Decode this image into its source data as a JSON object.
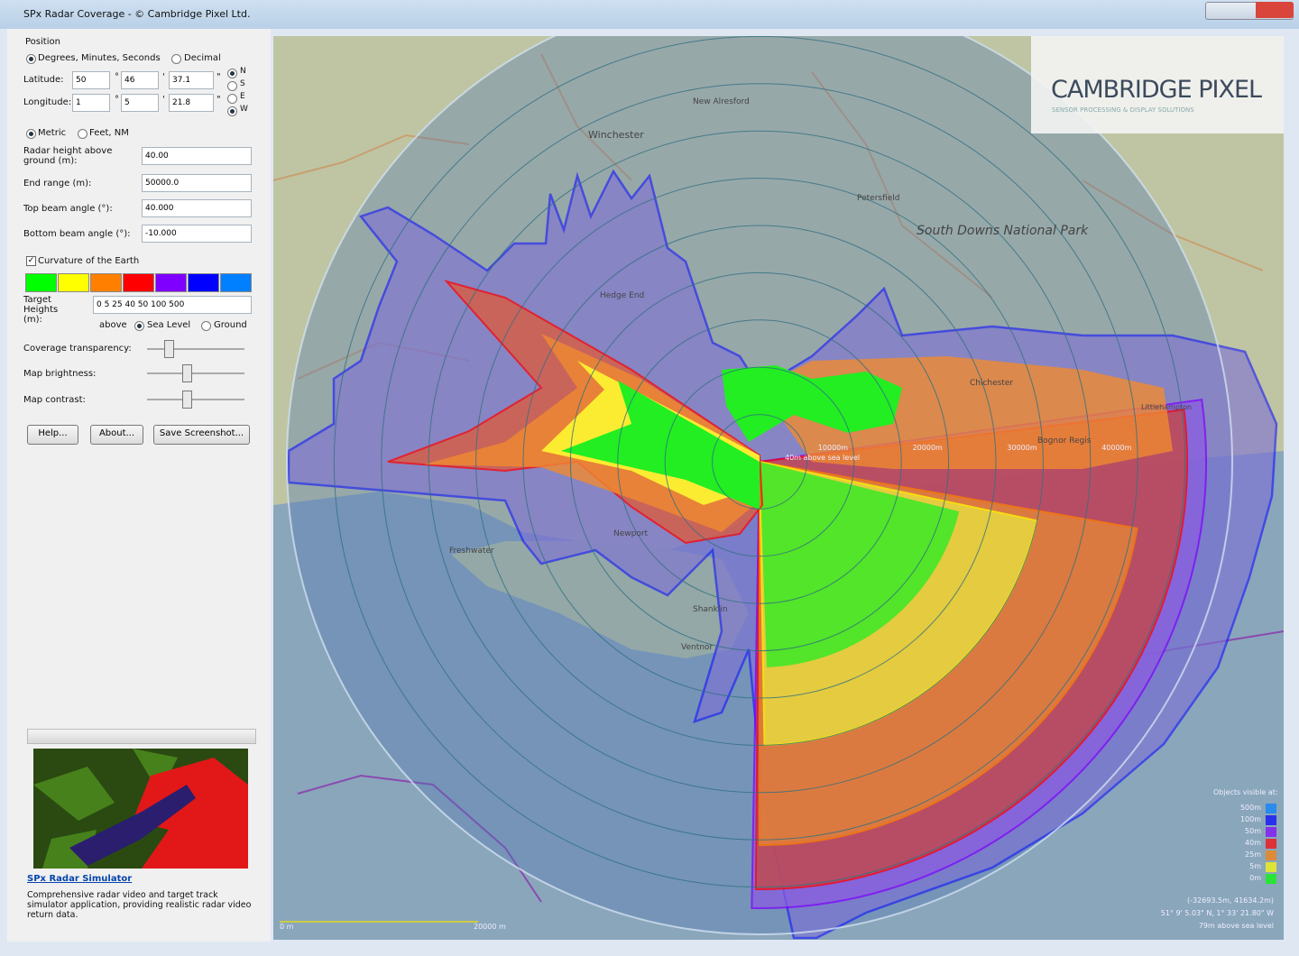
{
  "window": {
    "title": "SPx Radar Coverage - © Cambridge Pixel Ltd."
  },
  "panel": {
    "position": {
      "label": "Position",
      "format_options": [
        "Degrees, Minutes, Seconds",
        "Decimal"
      ],
      "separators": [
        "°",
        "'",
        "\""
      ],
      "latitude": {
        "label": "Latitude:",
        "values": [
          "50",
          "46",
          "37.1"
        ],
        "hemispheres": [
          "N",
          "S"
        ]
      },
      "longitude": {
        "label": "Longitude:",
        "values": [
          "1",
          "5",
          "21.8"
        ],
        "hemispheres": [
          "E",
          "W"
        ]
      }
    },
    "units": [
      "Metric",
      "Feet, NM"
    ],
    "fields": [
      {
        "label": "Radar height above ground (m):",
        "value": "40.00"
      },
      {
        "label": "End range (m):",
        "value": "50000.0"
      },
      {
        "label": "Top beam angle (°):",
        "value": "40.000"
      },
      {
        "label": "Bottom beam angle (°):",
        "value": "-10.000"
      }
    ],
    "curvature": "Curvature of the Earth",
    "height_colors": [
      "#00ff00",
      "#ffff00",
      "#ff8000",
      "#ff0000",
      "#8000ff",
      "#0000ff",
      "#0080ff"
    ],
    "target_heights": {
      "label": "Target Heights (m):",
      "value": "0 5 25 40 50 100 500"
    },
    "above": {
      "label": "above",
      "options": [
        "Sea Level",
        "Ground"
      ]
    },
    "sliders": [
      "Coverage transparency:",
      "Map brightness:",
      "Map contrast:"
    ],
    "buttons": [
      "Help...",
      "About...",
      "Save Screenshot..."
    ],
    "promo": {
      "link": "SPx Radar Simulator",
      "text": "Comprehensive radar video and target track simulator application, providing realistic radar video return data."
    }
  },
  "map": {
    "logo": "CAMBRIDGE PIXEL",
    "tagline": "SENSOR PROCESSING & DISPLAY SOLUTIONS",
    "places": [
      "Winchester",
      "New Alresford",
      "Petersfield",
      "South Downs National Park",
      "Hedge End",
      "Chichester",
      "Bognor Regis",
      "Littlehampton",
      "Freshwater",
      "Newport",
      "Shanklin",
      "Ventnor"
    ],
    "range_labels": [
      "10000m",
      "20000m",
      "30000m",
      "40000m"
    ],
    "center_label": "40m above sea level",
    "legend": {
      "title": "Objects visible at:",
      "items": [
        "500m",
        "100m",
        "50m",
        "40m",
        "25m",
        "5m",
        "0m"
      ]
    },
    "scale": [
      "0 m",
      "20000 m"
    ],
    "status": [
      "(-32693.5m, 41634.2m)",
      "51° 9' 5.03\" N, 1° 33' 21.80\" W",
      "79m above sea level"
    ]
  }
}
